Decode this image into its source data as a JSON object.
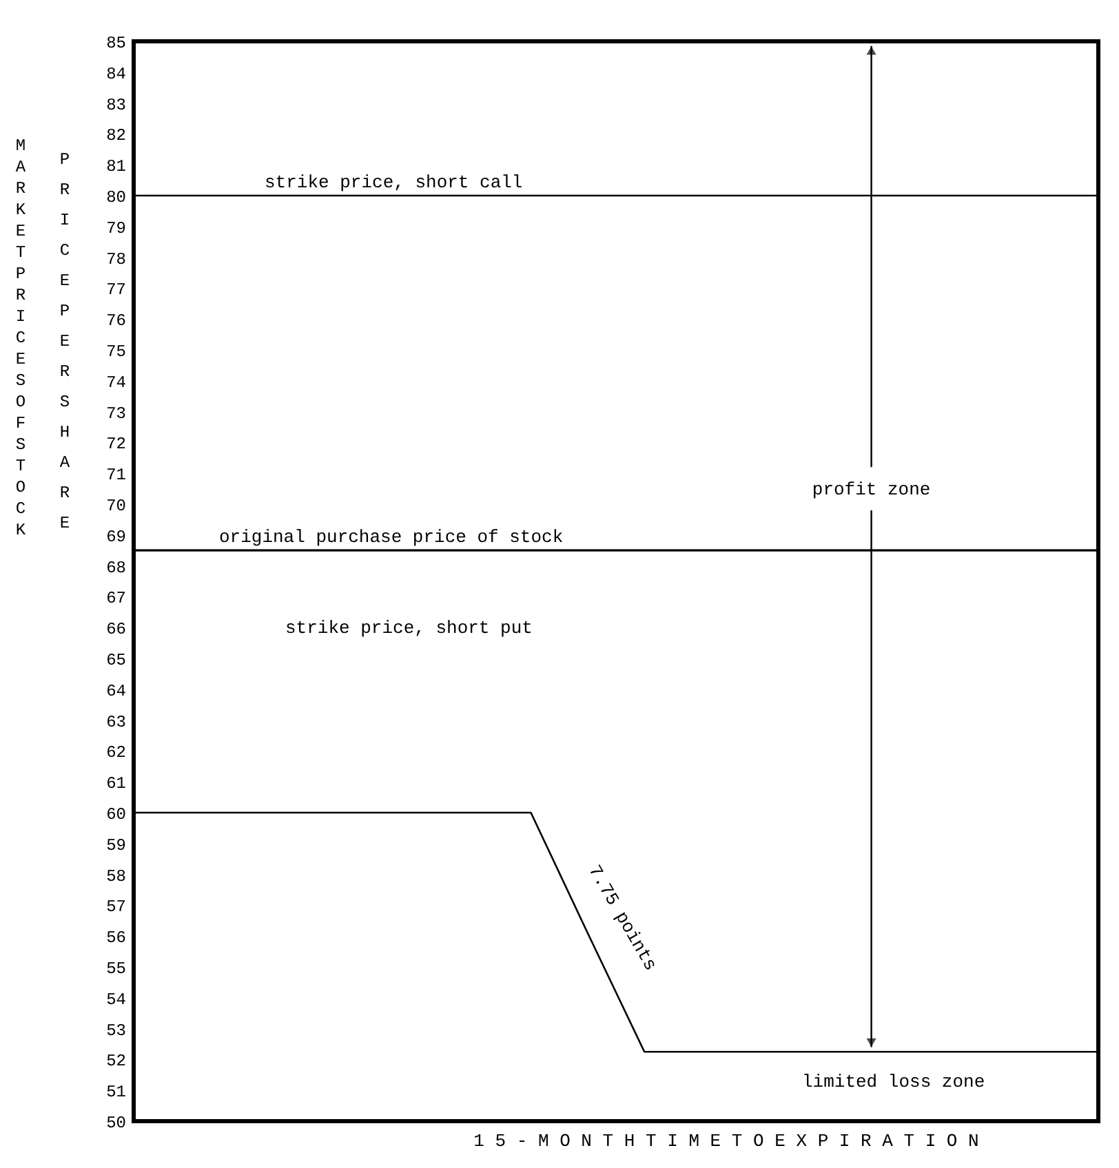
{
  "chart_data": {
    "type": "line",
    "ylabel": "MARKET PRICES OF STOCK",
    "xlabel": "1 5 - M O N T H T I M E T O  E X P I R A T I O N",
    "categories": [
      null,
      null,
      null,
      null,
      null,
      null,
      null,
      null,
      null,
      null,
      null,
      null,
      null,
      null,
      null,
      null,
      null,
      null
    ],
    "series": [
      {
        "color": "#000000",
        "values": [
          60,
          60,
          60,
          60,
          60,
          60,
          60,
          60,
          56.1,
          52.25,
          52.25,
          52.25,
          52.25,
          52.25,
          52.25,
          52.25,
          52.25,
          52.25
        ]
      }
    ],
    "ylim": [
      50,
      85
    ],
    "yticks": [
      50,
      51,
      52,
      53,
      54,
      55,
      56,
      57,
      58,
      59,
      60,
      61,
      62,
      63,
      64,
      65,
      66,
      67,
      68,
      69,
      70,
      71,
      72,
      73,
      74,
      75,
      76,
      77,
      78,
      79,
      80,
      81,
      82,
      83,
      84,
      85
    ],
    "ref_lines": [
      {
        "axis": "y",
        "value": 80,
        "label": "strike price, short call",
        "color": "#000000"
      },
      {
        "axis": "y",
        "value": 68.5,
        "label": "original purchase price of stock",
        "color": "#000000"
      }
    ],
    "annotations": [
      "PRICE PER SHARE",
      "strike price, short put",
      "profit zone",
      "limited loss zone",
      "7.75 points"
    ],
    "tick_labels": "y",
    "marker": "none",
    "line_style": "solid"
  }
}
